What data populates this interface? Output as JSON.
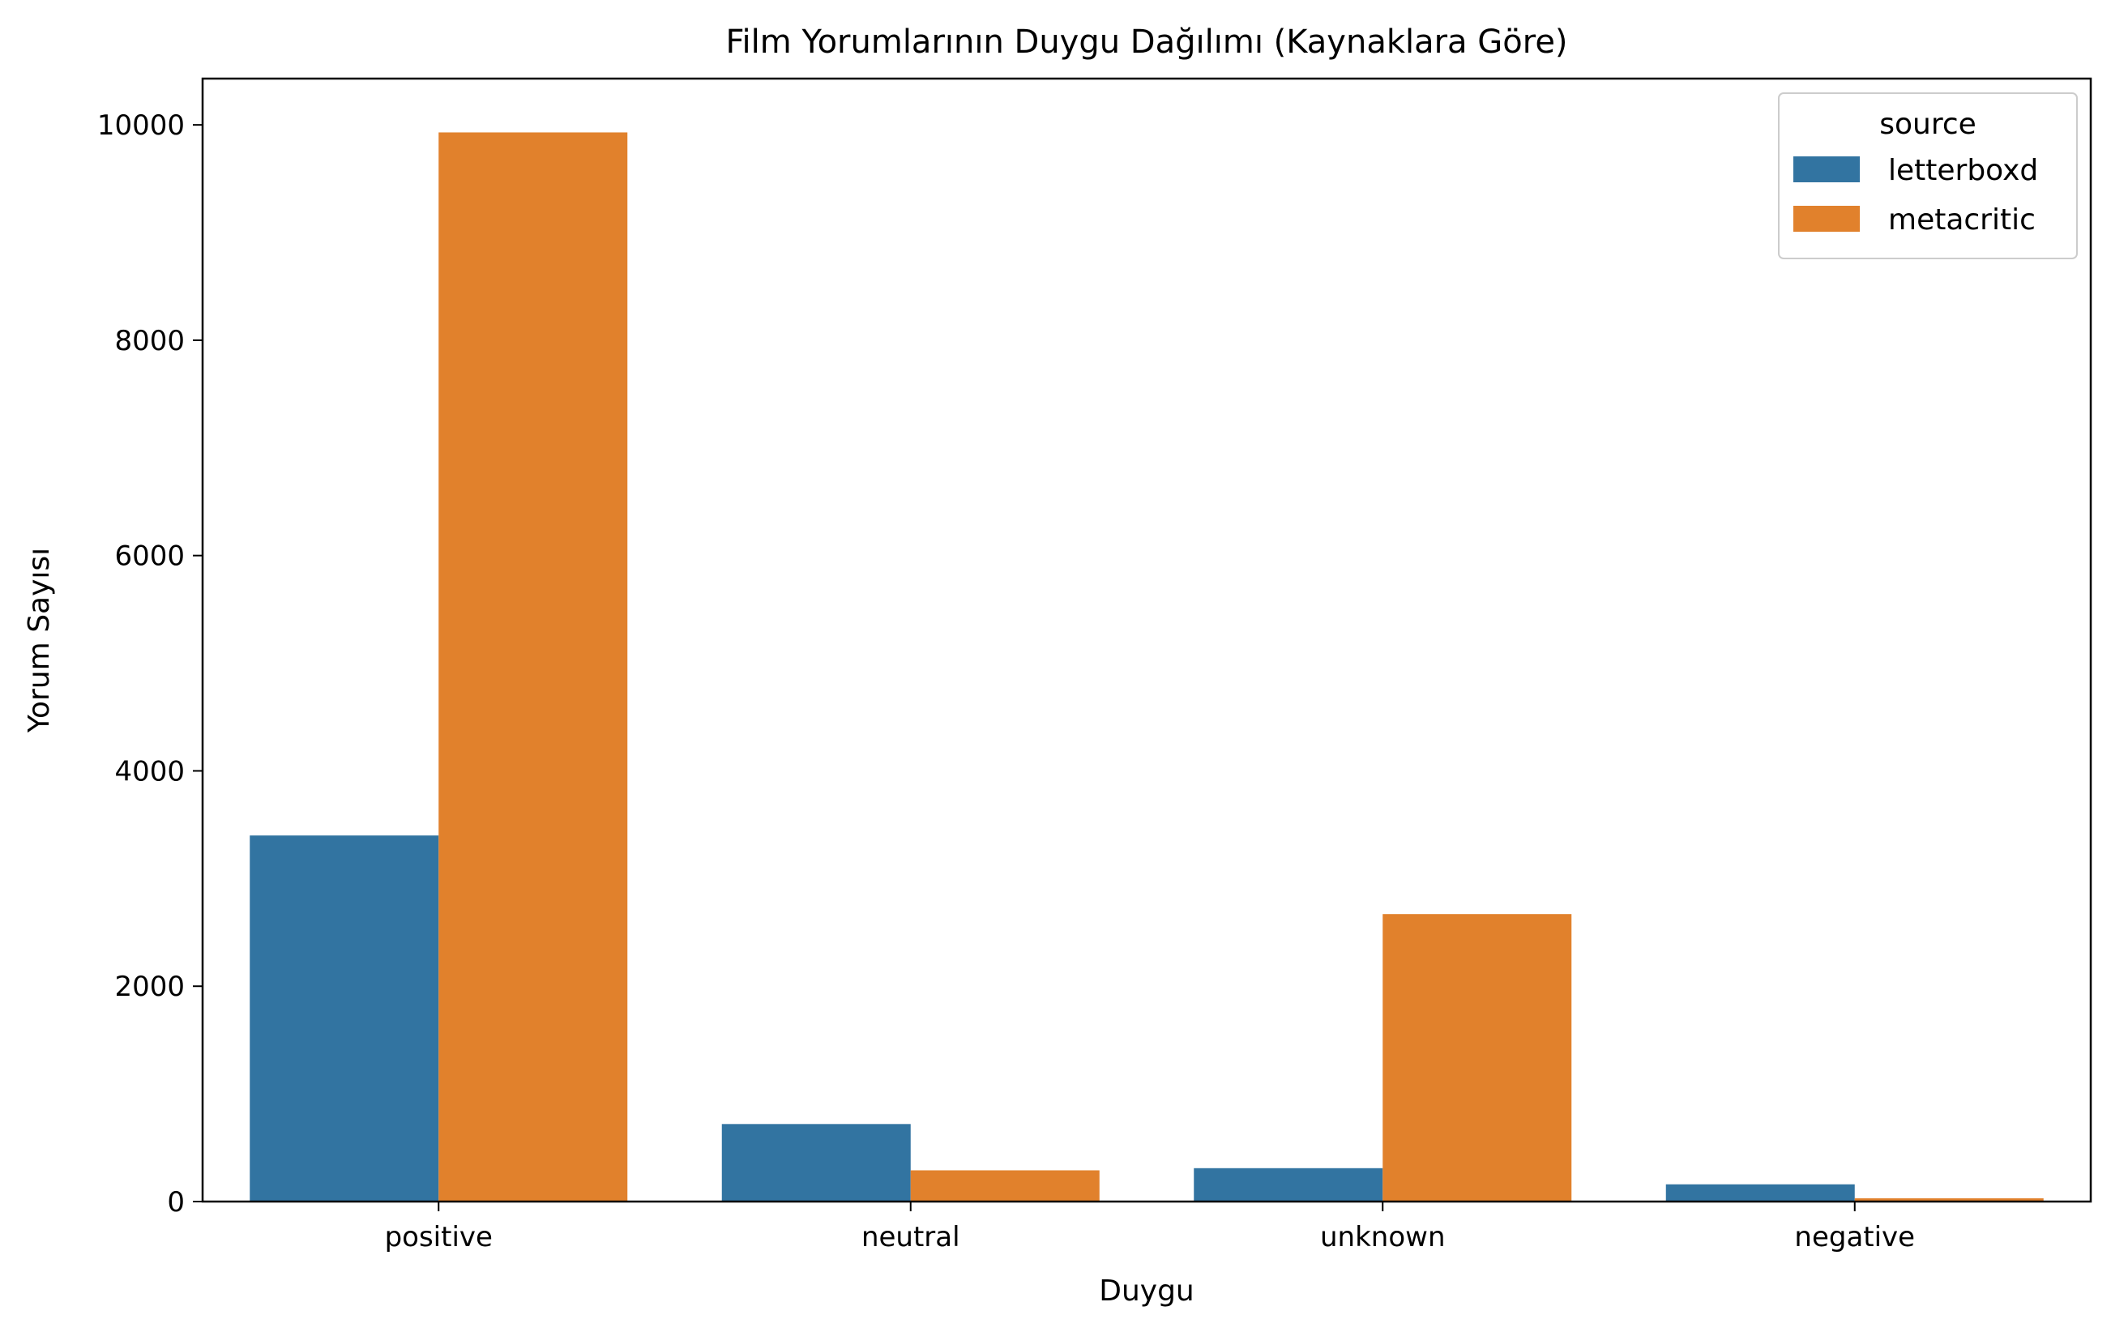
{
  "chart_data": {
    "type": "bar",
    "title": "Film Yorumlarının Duygu Dağılımı (Kaynaklara Göre)",
    "xlabel": "Duygu",
    "ylabel": "Yorum Sayısı",
    "categories": [
      "positive",
      "neutral",
      "unknown",
      "negative"
    ],
    "series": [
      {
        "name": "letterboxd",
        "color": "#3274a1",
        "values": [
          3400,
          720,
          310,
          160
        ]
      },
      {
        "name": "metacritic",
        "color": "#e1812c",
        "values": [
          9930,
          290,
          2670,
          30
        ]
      }
    ],
    "ylim": [
      0,
      10430
    ],
    "yticks": [
      0,
      2000,
      4000,
      6000,
      8000,
      10000
    ],
    "grid": false,
    "legend": {
      "title": "source",
      "position": "top-right"
    }
  }
}
